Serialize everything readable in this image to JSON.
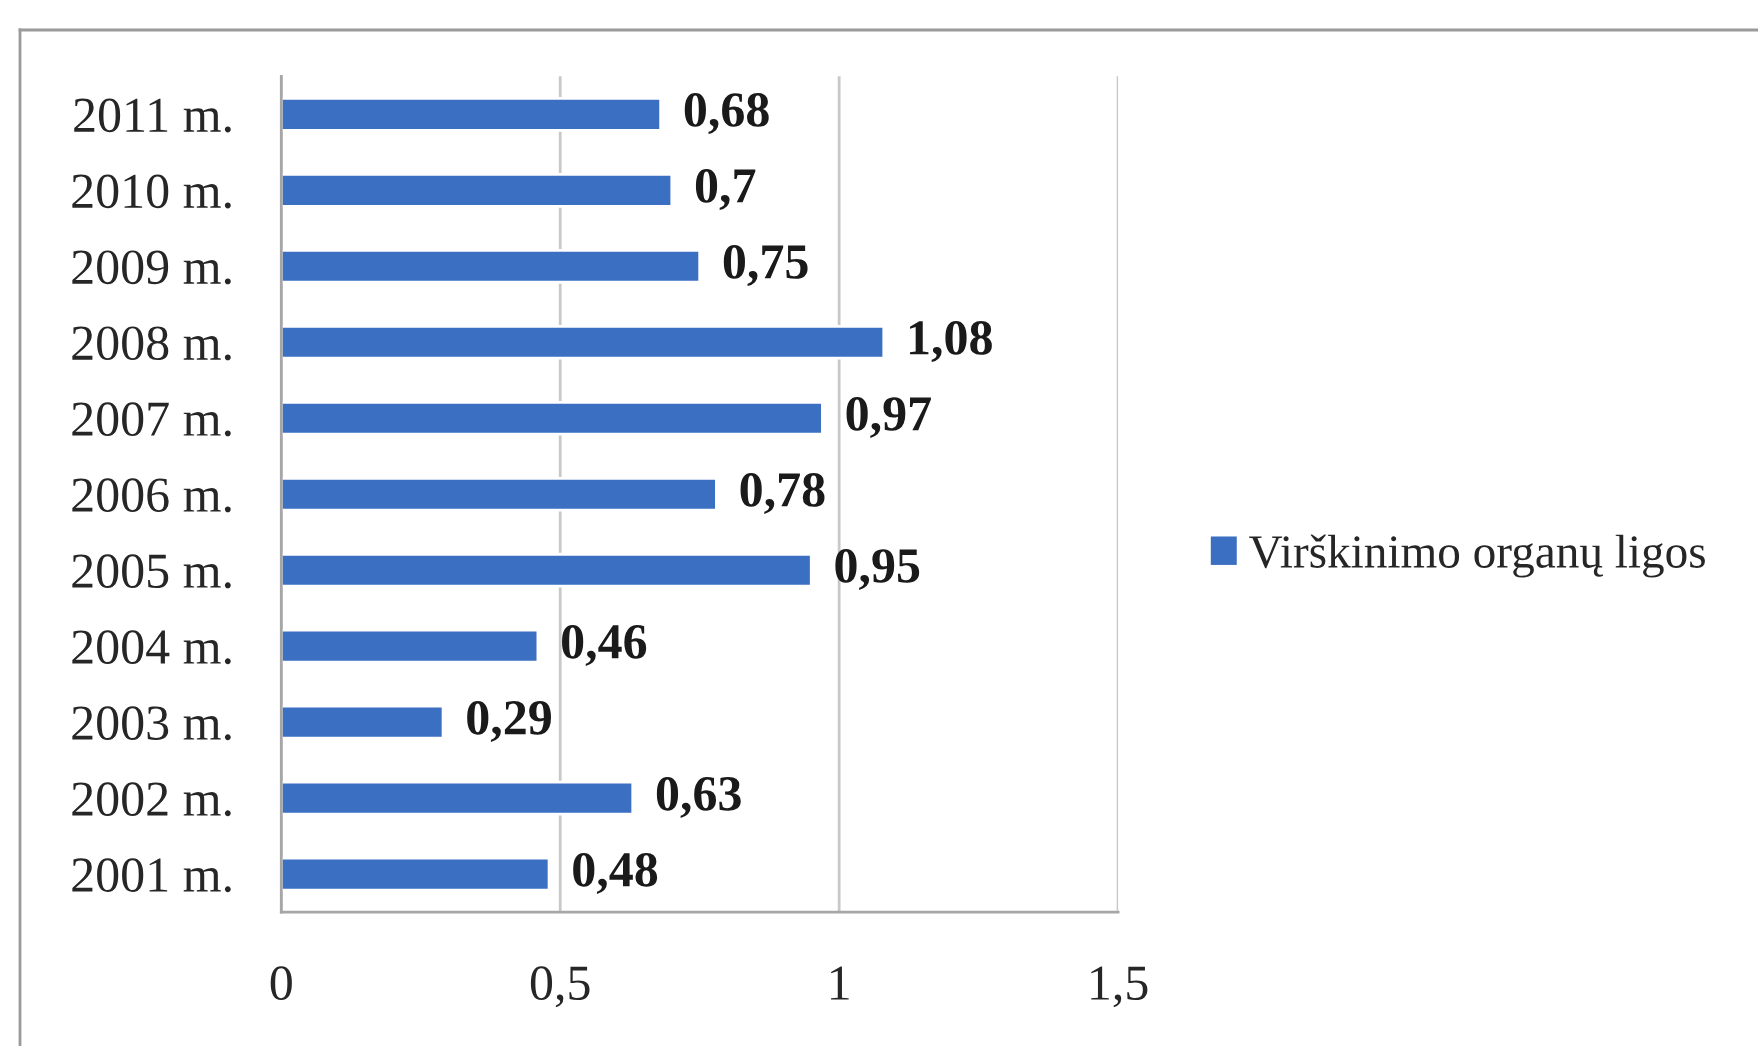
{
  "chart_data": {
    "type": "bar",
    "orientation": "horizontal",
    "categories": [
      "2011 m.",
      "2010 m.",
      "2009 m.",
      "2008 m.",
      "2007 m.",
      "2006 m.",
      "2005 m.",
      "2004 m.",
      "2003 m.",
      "2002 m.",
      "2001 m."
    ],
    "series": [
      {
        "name": "Virškinimo organų ligos",
        "color": "#3b6fc2",
        "values": [
          0.68,
          0.7,
          0.75,
          1.08,
          0.97,
          0.78,
          0.95,
          0.46,
          0.29,
          0.63,
          0.48
        ],
        "value_labels": [
          "0,68",
          "0,7",
          "0,75",
          "1,08",
          "0,97",
          "0,78",
          "0,95",
          "0,46",
          "0,29",
          "0,63",
          "0,48"
        ]
      }
    ],
    "xlim": [
      0,
      1.5
    ],
    "xticks": [
      0,
      {
        "value": 0.5,
        "label": "0,5"
      },
      1,
      {
        "value": 1.5,
        "label": "1,5"
      }
    ],
    "grid": "x",
    "legend": "right"
  }
}
